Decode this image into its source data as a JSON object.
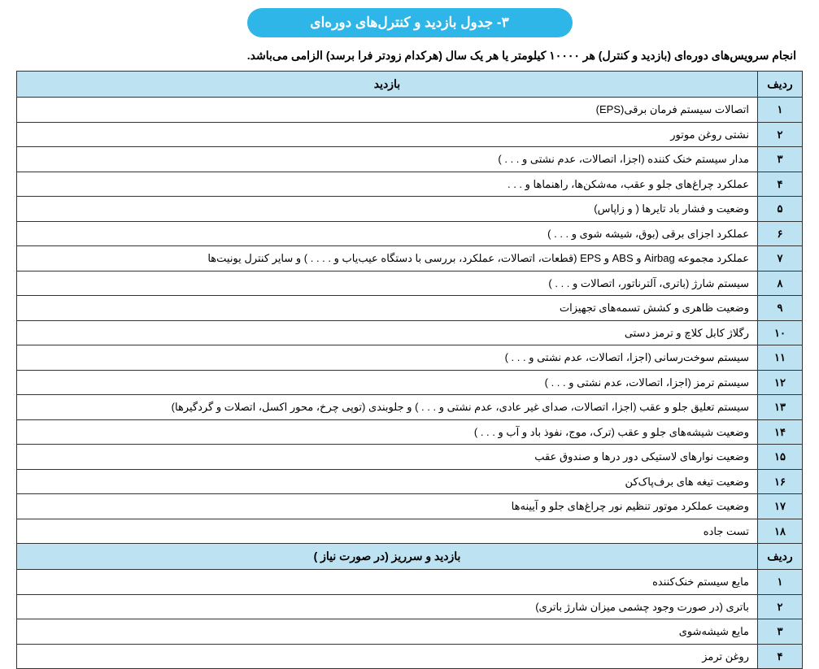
{
  "title": "۳- جدول بازدید و کنترل‌های دوره‌ای",
  "subtitle": "انجام سرویس‌های دوره‌ای (بازدید و کنترل) هر ۱۰۰۰۰ کیلومتر یا هر یک سال (هرکدام زودتر فرا برسد) الزامی می‌باشد.",
  "section1": {
    "num_header": "ردیف",
    "desc_header": "بازدید",
    "rows": [
      {
        "n": "۱",
        "d": "اتصالات سیستم فرمان برقی(EPS)"
      },
      {
        "n": "۲",
        "d": "نشتی روغن موتور"
      },
      {
        "n": "۳",
        "d": "مدار سیستم خنک کننده (اجزا، اتصالات، عدم نشتی و . . . )"
      },
      {
        "n": "۴",
        "d": "عملکرد چراغ‌های جلو و عقب، مه‌شکن‌ها، راهنماها و . . ."
      },
      {
        "n": "۵",
        "d": "وضعیت و فشار باد تایرها ( و زاپاس)"
      },
      {
        "n": "۶",
        "d": "عملکرد اجزای برقی (بوق، شیشه شوی و . . . )"
      },
      {
        "n": "۷",
        "d": "عملکرد مجموعه Airbag و ABS و EPS (قطعات، اتصالات، عملکرد، بررسی با دستگاه عیب‌یاب و . . . . ) و سایر کنترل یونیت‌ها"
      },
      {
        "n": "۸",
        "d": "سیستم شارژ (باتری، آلترناتور، اتصالات و . . . )"
      },
      {
        "n": "۹",
        "d": "وضعیت ظاهری و کشش تسمه‌های تجهیزات"
      },
      {
        "n": "۱۰",
        "d": "رگلاژ کابل کلاچ و ترمز دستی"
      },
      {
        "n": "۱۱",
        "d": "سیستم سوخت‌رسانی (اجزا، اتصالات، عدم نشتی و . . . )"
      },
      {
        "n": "۱۲",
        "d": "سیستم ترمز (اجزا، اتصالات، عدم نشتی و . . . )"
      },
      {
        "n": "۱۳",
        "d": "سیستم تعلیق جلو و عقب (اجزا، اتصالات، صدای غیر عادی، عدم نشتی و . . . ) و جلوبندی (توپی چرخ، محور اکسل، اتصلات و گردگیرها)"
      },
      {
        "n": "۱۴",
        "d": "وضعیت شیشه‌های جلو و عقب (ترک، موج، نفوذ باد و آب و . . . )"
      },
      {
        "n": "۱۵",
        "d": "وضعیت نوارهای لاستیکی دور درها و صندوق عقب"
      },
      {
        "n": "۱۶",
        "d": "وضعیت تیغه های برف‌پاک‌کن"
      },
      {
        "n": "۱۷",
        "d": "وضعیت عملکرد موتور تنظیم نور چراغ‌های جلو و آیینه‌ها"
      },
      {
        "n": "۱۸",
        "d": "تست جاده"
      }
    ]
  },
  "section2": {
    "num_header": "ردیف",
    "desc_header": "بازدید و سرریز (در صورت نیاز )",
    "rows": [
      {
        "n": "۱",
        "d": "مایع سیستم خنک‌کننده"
      },
      {
        "n": "۲",
        "d": "باتری (در صورت وجود چشمی میزان شارژ باتری)"
      },
      {
        "n": "۳",
        "d": "مایع شیشه‌شوی"
      },
      {
        "n": "۴",
        "d": "روغن ترمز"
      }
    ]
  },
  "colors": {
    "pill_bg": "#2eb6e8",
    "pill_text": "#ffffff",
    "header_bg": "#bde3f3",
    "border": "#333333",
    "text": "#000000",
    "body_bg": "#ffffff"
  }
}
